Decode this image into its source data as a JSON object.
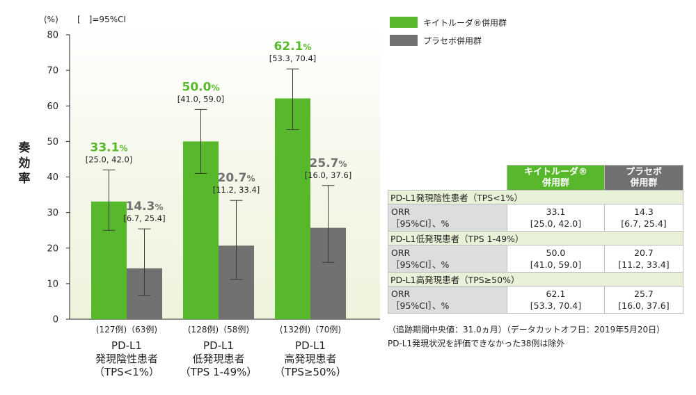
{
  "chart_data": {
    "type": "bar",
    "ylabel": "奏効率",
    "yunit": "(%)",
    "ci_note": "[　]=95%CI",
    "ylim": [
      0,
      80
    ],
    "yticks": [
      0,
      10,
      20,
      30,
      40,
      50,
      60,
      70,
      80
    ],
    "groups": [
      {
        "counts": "(127例)（63例)",
        "label_lines": [
          "PD-L1",
          "発現陰性患者",
          "（TPS<1%）"
        ]
      },
      {
        "counts": "(128例)（58例)",
        "label_lines": [
          "PD-L1",
          "低発現患者",
          "（TPS 1-49%）"
        ]
      },
      {
        "counts": "(132例)（70例)",
        "label_lines": [
          "PD-L1",
          "高発現患者",
          "（TPS≥50%）"
        ]
      }
    ],
    "series": [
      {
        "name": "キイトルーダ®併用群",
        "color": "#58b82c",
        "values": [
          33.1,
          50.0,
          62.1
        ],
        "value_labels": [
          "33.1%",
          "50.0%",
          "62.1%"
        ],
        "ci": [
          [
            25.0,
            42.0
          ],
          [
            41.0,
            59.0
          ],
          [
            53.3,
            70.4
          ]
        ],
        "ci_labels": [
          "[25.0, 42.0]",
          "[41.0, 59.0]",
          "[53.3, 70.4]"
        ]
      },
      {
        "name": "プラセボ併用群",
        "color": "#727171",
        "values": [
          14.3,
          20.7,
          25.7
        ],
        "value_labels": [
          "14.3%",
          "20.7%",
          "25.7%"
        ],
        "ci": [
          [
            6.7,
            25.4
          ],
          [
            11.2,
            33.4
          ],
          [
            16.0,
            37.6
          ]
        ],
        "ci_labels": [
          "[6.7, 25.4]",
          "[11.2, 33.4]",
          "[16.0, 37.6]"
        ]
      }
    ],
    "grid": false,
    "legend_position": "top-right"
  },
  "legend": {
    "items": [
      {
        "label": "キイトルーダ®併用群",
        "color": "#58b82c"
      },
      {
        "label": "プラセボ併用群",
        "color": "#727171"
      }
    ]
  },
  "table": {
    "header": [
      "キイトルーダ®\n併用群",
      "プラセボ\n併用群"
    ],
    "sections": [
      {
        "title": "PD-L1発現陰性患者（TPS<1%）",
        "row_label": "ORR\n［95%CI］、%",
        "kei": "33.1\n[25.0, 42.0]",
        "pla": "14.3\n[6.7, 25.4]"
      },
      {
        "title": "PD-L1低発現患者（TPS 1-49%）",
        "row_label": "ORR\n［95%CI］、%",
        "kei": "50.0\n[41.0, 59.0]",
        "pla": "20.7\n[11.2, 33.4]"
      },
      {
        "title": "PD-L1高発現患者（TPS≥50%）",
        "row_label": "ORR\n［95%CI］、%",
        "kei": "62.1\n[53.3, 70.4]",
        "pla": "25.7\n[16.0, 37.6]"
      }
    ]
  },
  "footnote": {
    "line1": "（追跡期間中央値：31.0ヵ月）（データカットオフ日：2019年5月20日）",
    "line2": "PD-L1発現状況を評価できなかった38例は除外"
  },
  "colors": {
    "green": "#58b82c",
    "gray": "#727171",
    "panel_bg": "#f2f5e6"
  }
}
